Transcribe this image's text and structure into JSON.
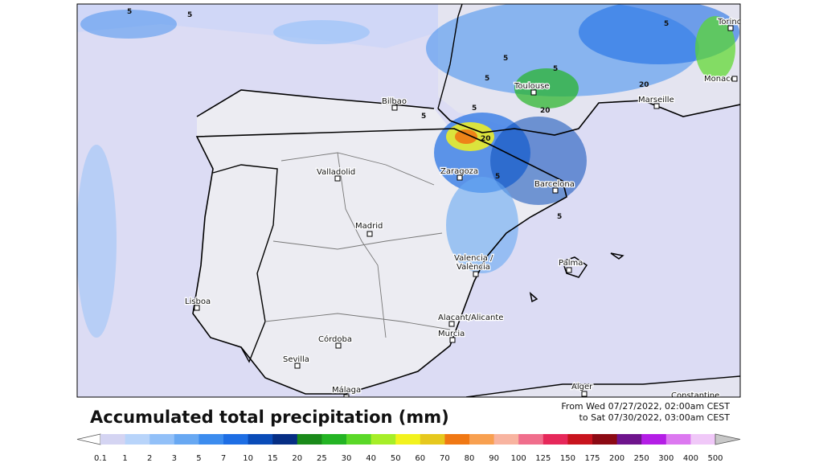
{
  "title": "Accumulated total precipitation (mm)",
  "period": [
    "From Wed 07/27/2022, 02:00am CEST",
    "to Sat 07/30/2022, 03:00am CEST"
  ],
  "map": {
    "cities": [
      "Torino",
      "Monaco",
      "Toulouse",
      "Marseille",
      "Bilbao",
      "Zaragoza",
      "Barcelona",
      "Valladolid",
      "Madrid",
      "Valencia /",
      "València",
      "Palma",
      "Lisboa",
      "Alacant/Alicante",
      "Murcia",
      "Córdoba",
      "Sevilla",
      "Málaga",
      "Alger",
      "Constantine"
    ],
    "contour_labels": [
      "5",
      "5",
      "5",
      "5",
      "5",
      "5",
      "5",
      "5",
      "5",
      "5",
      "20",
      "20",
      "20"
    ]
  },
  "legend": {
    "levels": [
      0.1,
      1,
      2,
      3,
      5,
      7,
      10,
      15,
      20,
      25,
      30,
      40,
      50,
      60,
      70,
      80,
      90,
      100,
      125,
      150,
      175,
      200,
      250,
      300,
      400,
      500
    ],
    "colors": [
      "#d4d4f2",
      "#b8d4fa",
      "#92c0f8",
      "#68a8f2",
      "#3c8cee",
      "#1e6ee4",
      "#0a4cb8",
      "#062e84",
      "#1a8a1a",
      "#24b424",
      "#5ad828",
      "#a6ee28",
      "#f2f21e",
      "#e6c81e",
      "#f07814",
      "#f8a050",
      "#f8b4a0",
      "#f06e8c",
      "#e6285a",
      "#c8141e",
      "#8c0a14",
      "#6e148c",
      "#b41ee6",
      "#dc78f0",
      "#f0c8f8"
    ]
  }
}
